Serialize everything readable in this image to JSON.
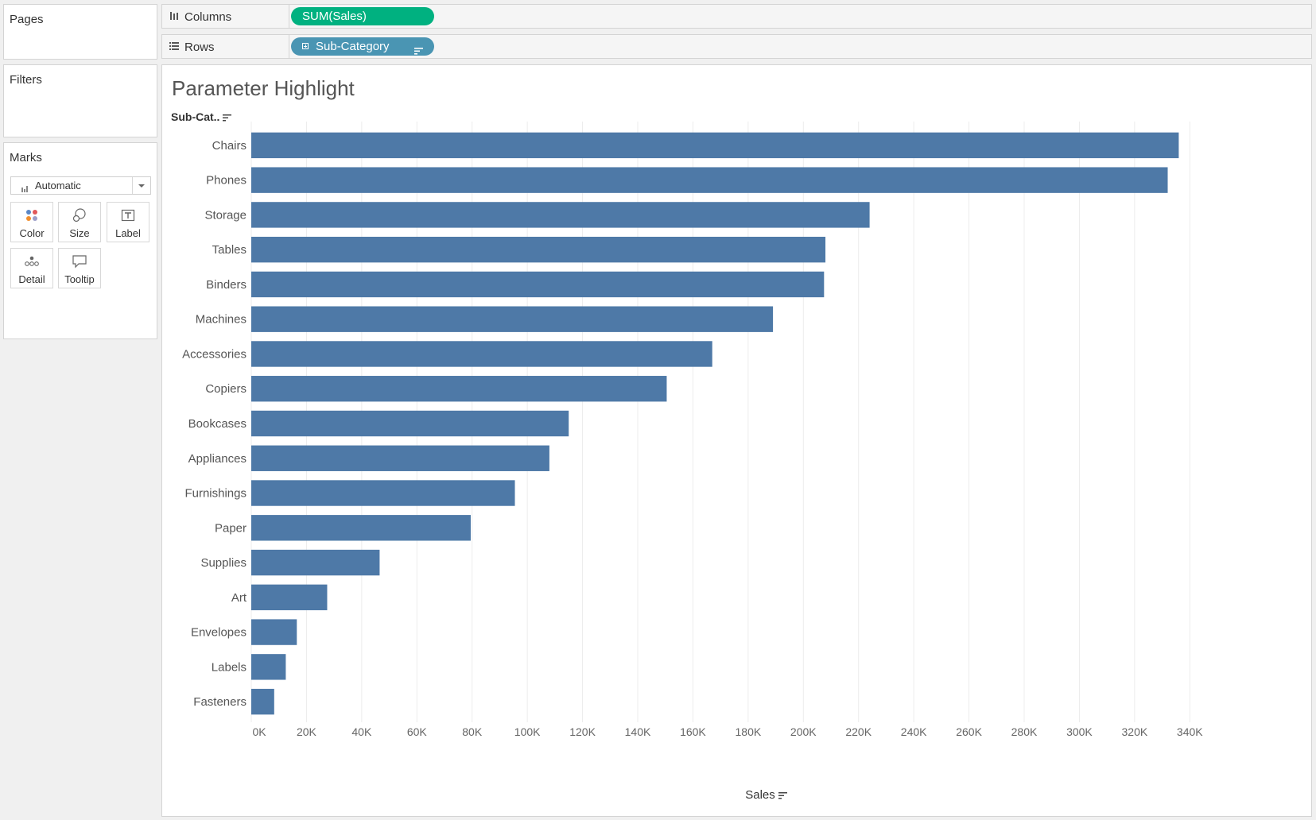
{
  "left_panel": {
    "pages_title": "Pages",
    "filters_title": "Filters",
    "marks": {
      "title": "Marks",
      "mark_type": "Automatic",
      "buttons": [
        {
          "label": "Color",
          "icon": "color-icon"
        },
        {
          "label": "Size",
          "icon": "size-icon"
        },
        {
          "label": "Label",
          "icon": "label-icon"
        },
        {
          "label": "Detail",
          "icon": "detail-icon"
        },
        {
          "label": "Tooltip",
          "icon": "tooltip-icon"
        }
      ]
    }
  },
  "shelves": {
    "columns": {
      "label": "Columns",
      "pill": "SUM(Sales)",
      "pill_color": "#00b180"
    },
    "rows": {
      "label": "Rows",
      "pill": "Sub-Category",
      "pill_color": "#4a95b3"
    }
  },
  "viz": {
    "title": "Parameter Highlight",
    "rows_header": "Sub-Cat.."
  },
  "chart_data": {
    "type": "bar",
    "orientation": "horizontal",
    "title": "Parameter Highlight",
    "xlabel": "Sales",
    "ylabel": "Sub-Cat..",
    "bar_color": "#4e79a7",
    "xlim": [
      0,
      350000
    ],
    "x_ticks": [
      0,
      20000,
      40000,
      60000,
      80000,
      100000,
      120000,
      140000,
      160000,
      180000,
      200000,
      220000,
      240000,
      260000,
      280000,
      300000,
      320000,
      340000
    ],
    "x_tick_labels": [
      "0K",
      "20K",
      "40K",
      "60K",
      "80K",
      "100K",
      "120K",
      "140K",
      "160K",
      "180K",
      "200K",
      "220K",
      "240K",
      "260K",
      "280K",
      "300K",
      "320K",
      "340K"
    ],
    "grid": "vertical",
    "categories": [
      "Chairs",
      "Phones",
      "Storage",
      "Tables",
      "Binders",
      "Machines",
      "Accessories",
      "Copiers",
      "Bookcases",
      "Appliances",
      "Furnishings",
      "Paper",
      "Supplies",
      "Art",
      "Envelopes",
      "Labels",
      "Fasteners"
    ],
    "values": [
      336000,
      332000,
      224000,
      208000,
      207500,
      189000,
      167000,
      150500,
      115000,
      108000,
      95500,
      79500,
      46500,
      27500,
      16500,
      12500,
      8300
    ]
  }
}
